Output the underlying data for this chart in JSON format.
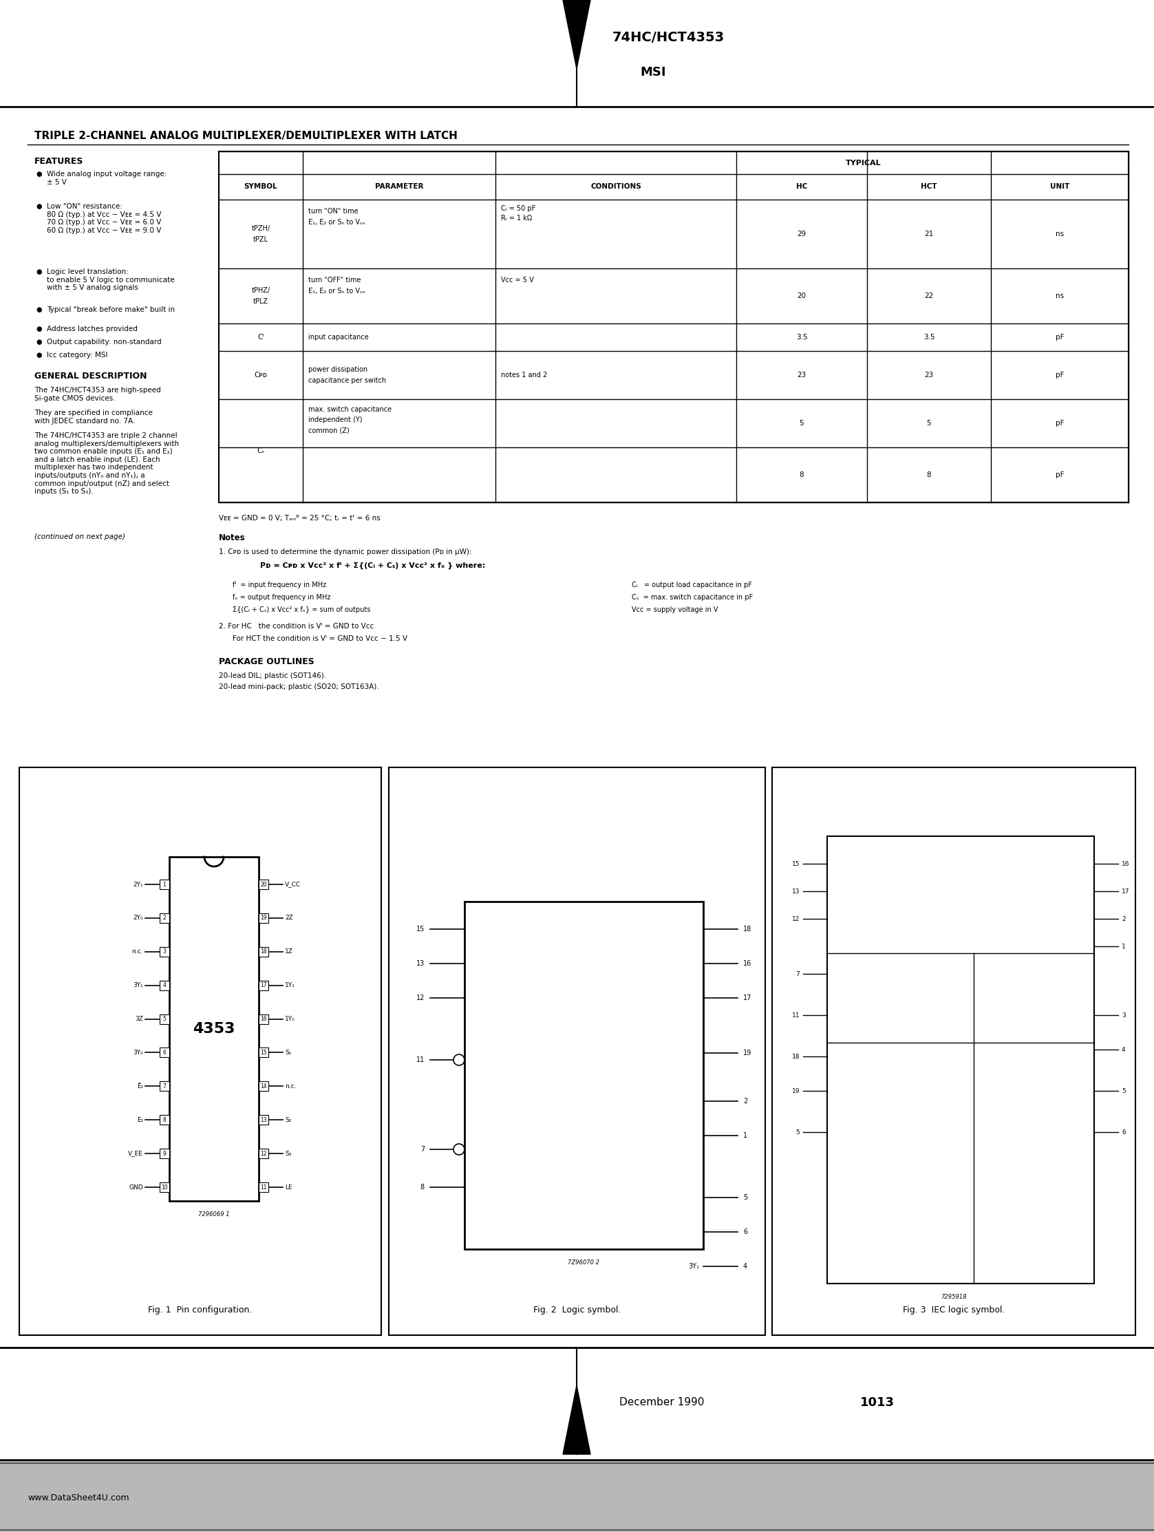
{
  "page_title": "74HC/HCT4353",
  "page_subtitle": "MSI",
  "main_title": "TRIPLE 2-CHANNEL ANALOG MULTIPLEXER/DEMULTIPLEXER WITH LATCH",
  "features_title": "FEATURES",
  "gen_desc_title": "GENERAL DESCRIPTION",
  "table_headers": [
    "SYMBOL",
    "PARAMETER",
    "CONDITIONS",
    "HC",
    "HCT",
    "UNIT"
  ],
  "footer_left": "www.DataSheet4U.com",
  "footer_date": "December 1990",
  "footer_page": "1013",
  "fig1_caption": "Fig. 1  Pin configuration.",
  "fig2_caption": "Fig. 2  Logic symbol.",
  "fig3_caption": "Fig. 3  IEC logic symbol.",
  "chip_label": "4353",
  "bg_color": "#ffffff"
}
